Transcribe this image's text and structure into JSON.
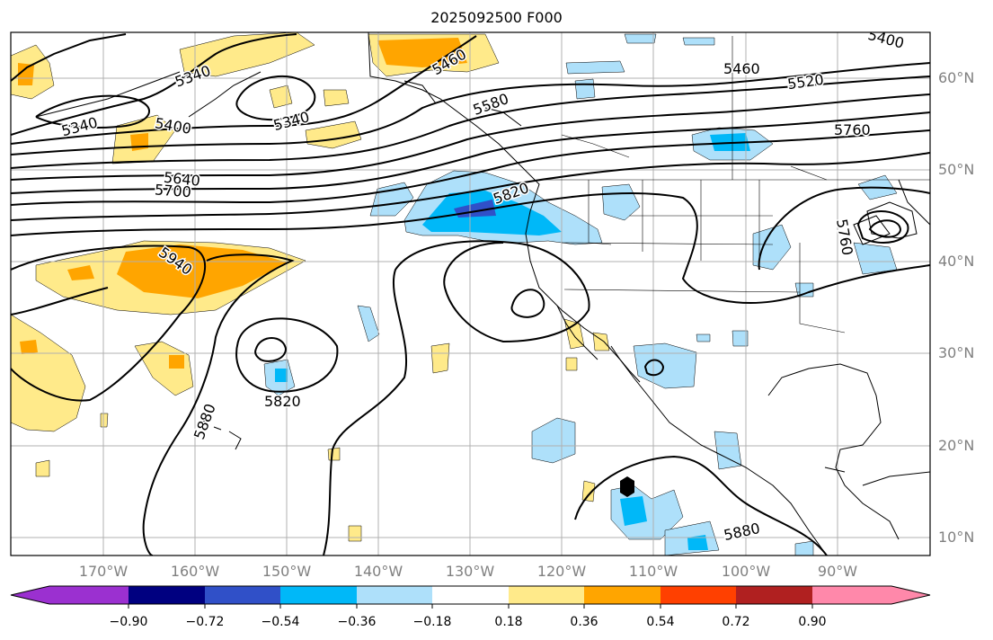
{
  "title": "2025092500 F000",
  "longitude_labels": [
    "170°W",
    "160°W",
    "150°W",
    "140°W",
    "130°W",
    "120°W",
    "110°W",
    "100°W",
    "90°W"
  ],
  "latitude_labels": [
    "60°N",
    "50°N",
    "40°N",
    "30°N",
    "20°N",
    "10°N"
  ],
  "contour_labels": [
    "5340",
    "5340",
    "5340",
    "5400",
    "5460",
    "5580",
    "5460",
    "5520",
    "5400",
    "5760",
    "5640",
    "5700",
    "5820",
    "5940",
    "5880",
    "5820",
    "5880",
    "5760"
  ],
  "colorbar": {
    "tick_labels": [
      "−0.90",
      "−0.72",
      "−0.54",
      "−0.36",
      "−0.18",
      "0.18",
      "0.36",
      "0.54",
      "0.72",
      "0.90"
    ],
    "colors": [
      "#9b30d0",
      "#000080",
      "#3050c8",
      "#00b8f8",
      "#aee0fa",
      "#ffffff",
      "#ffea8a",
      "#ffa500",
      "#ff4000",
      "#b02020",
      "#ff88aa"
    ]
  },
  "fill_colors": {
    "neg_light": "#aee0fa",
    "neg_mid": "#00b8f8",
    "neg_dark": "#3050c8",
    "pos_light": "#ffea8a",
    "pos_mid": "#ffa500",
    "pos_dark": "#ff4000"
  }
}
